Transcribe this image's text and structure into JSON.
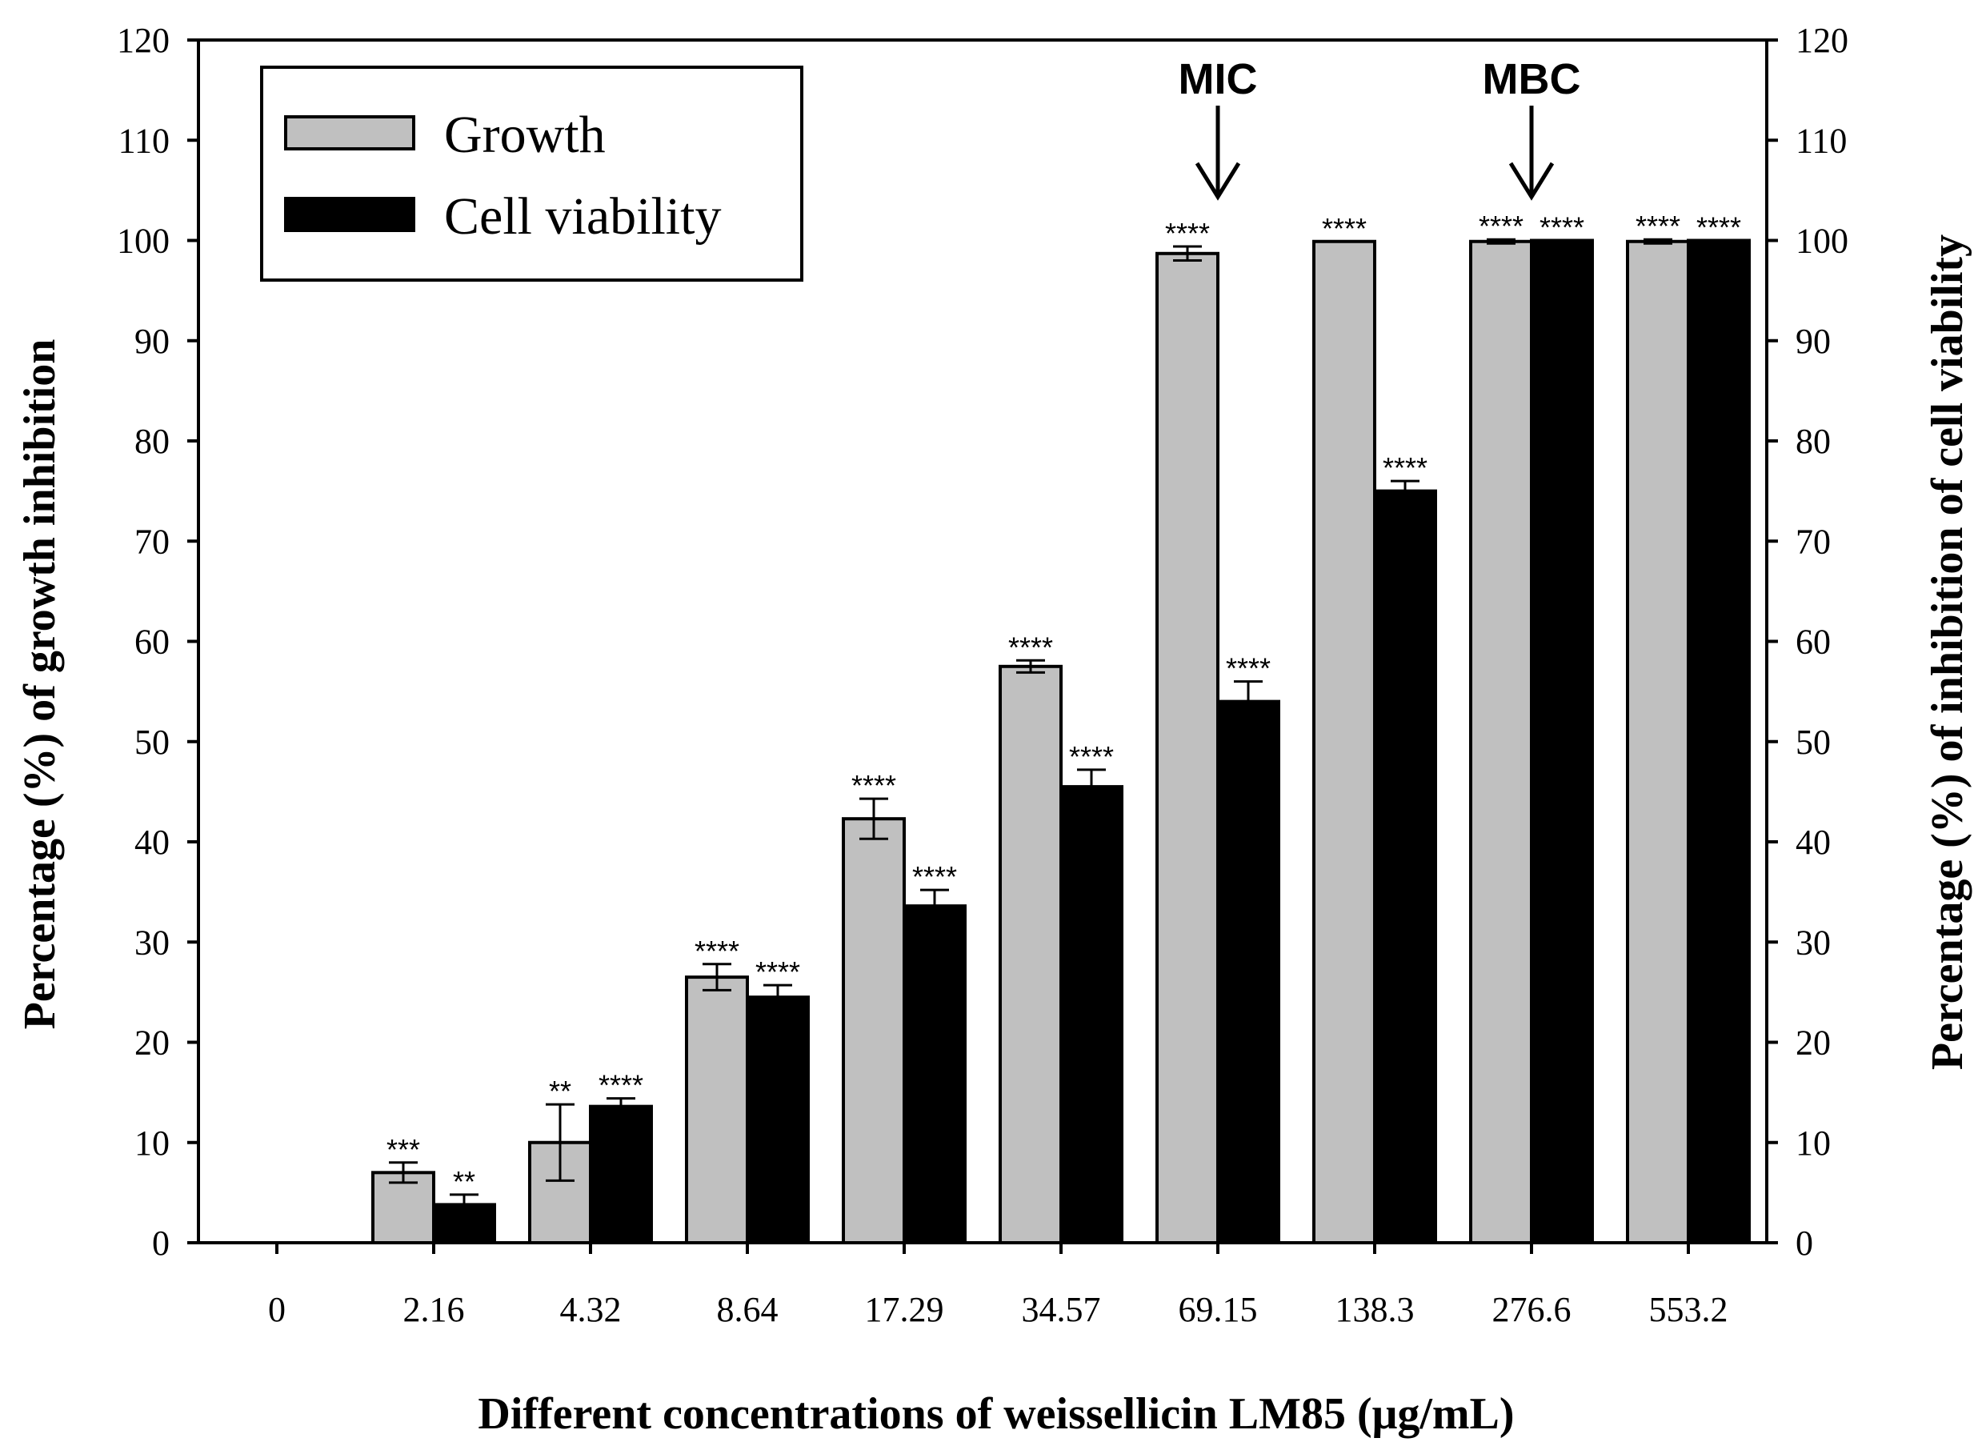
{
  "chart_data": {
    "type": "bar",
    "categories": [
      "0",
      "2.16",
      "4.32",
      "8.64",
      "17.29",
      "34.57",
      "69.15",
      "138.3",
      "276.6",
      "553.2"
    ],
    "series": [
      {
        "name": "Growth",
        "color": "#c0c0c0",
        "values": [
          0,
          7,
          10,
          26.5,
          42.3,
          57.5,
          98.7,
          99.9,
          99.9,
          99.9
        ],
        "errors": [
          0,
          1.0,
          3.8,
          1.3,
          2.0,
          0.6,
          0.7,
          0,
          0.2,
          0.2
        ],
        "significance": [
          "",
          "***",
          "**",
          "****",
          "****",
          "****",
          "****",
          "****",
          "****",
          "****"
        ]
      },
      {
        "name": "Cell viability",
        "color": "#000000",
        "values": [
          0,
          3.8,
          13.6,
          24.5,
          33.6,
          45.5,
          54,
          75,
          100,
          100
        ],
        "errors": [
          0,
          1.0,
          0.8,
          1.2,
          1.6,
          1.7,
          2.0,
          1.0,
          0,
          0
        ],
        "significance": [
          "",
          "**",
          "****",
          "****",
          "****",
          "****",
          "****",
          "****",
          "****",
          "****"
        ]
      }
    ],
    "xlabel": "Different concentrations of weissellicin LM85 (μg/mL)",
    "ylabel": "Percentage (%) of growth inhibition",
    "y2label": "Percentage (%) of inhibition of cell viability",
    "ylim": [
      0,
      120
    ],
    "yticks": [
      0,
      10,
      20,
      30,
      40,
      50,
      60,
      70,
      80,
      90,
      100,
      110,
      120
    ],
    "legend_position": "top-left",
    "annotations": [
      {
        "text": "MIC",
        "category": "69.15"
      },
      {
        "text": "MBC",
        "category": "276.6"
      }
    ]
  }
}
